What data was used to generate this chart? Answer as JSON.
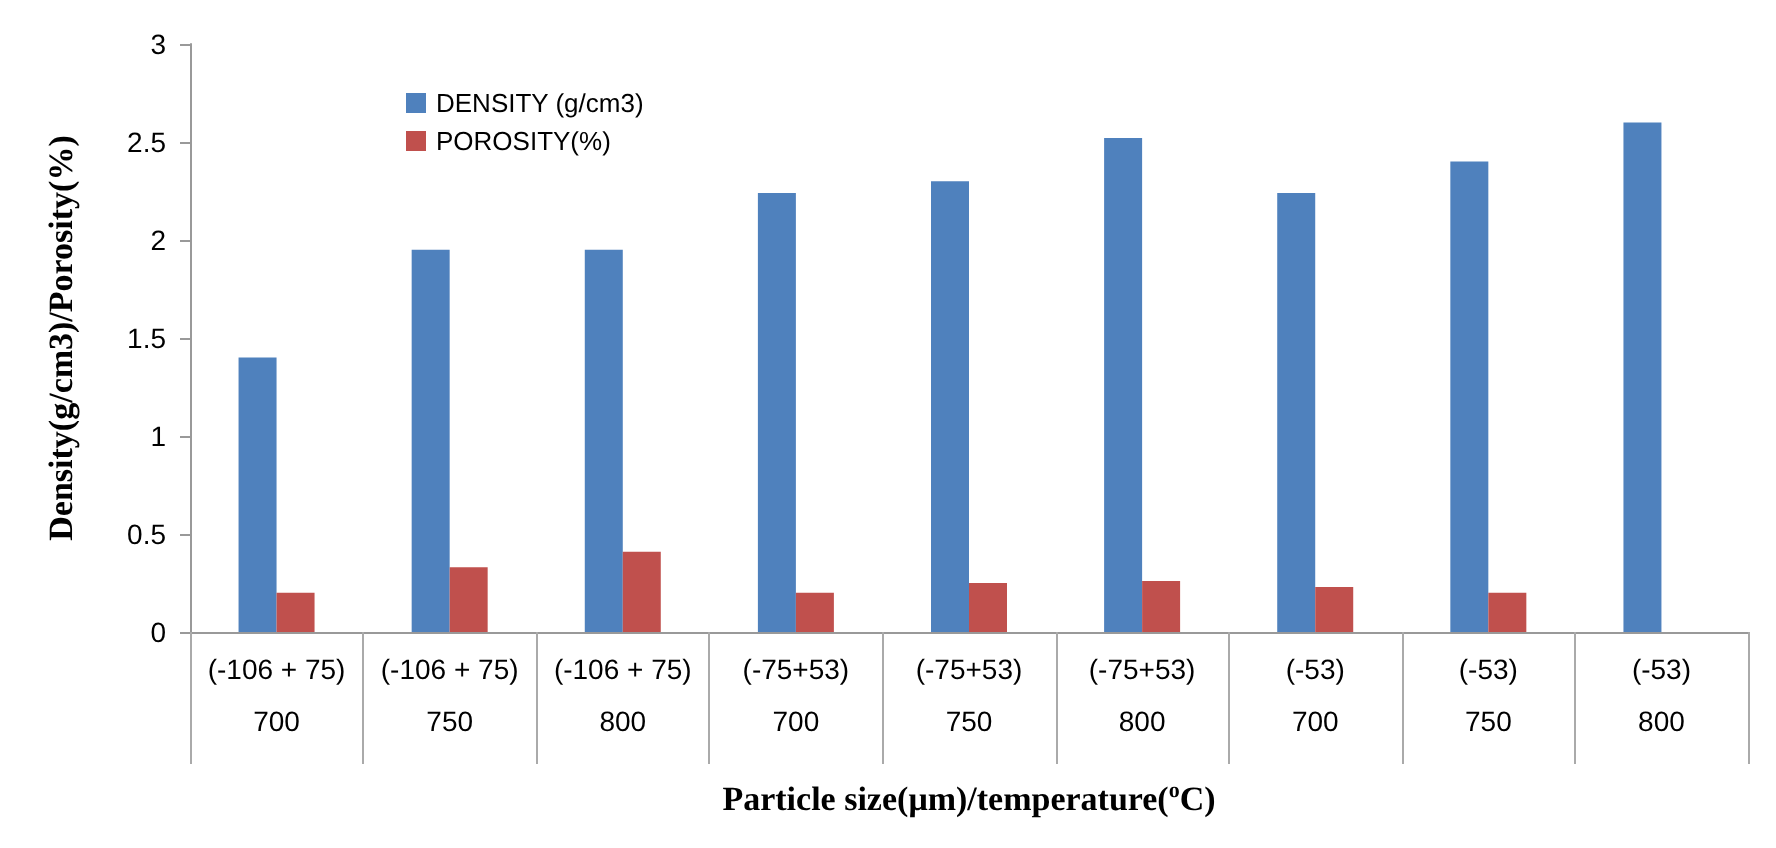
{
  "chart_data": {
    "type": "bar",
    "xlabel": "Particle size(μm)/temperature($^{o}$C)",
    "ylabel": "Density(g/cm3)/Porosity(%)",
    "categories": [
      "(-106 + 75)\n\n700",
      "(-106 + 75)\n\n750",
      "(-106 + 75)\n\n800",
      "(-75+53)\n\n700",
      "(-75+53)\n\n750",
      "(-75+53)\n\n800",
      "(-53)\n\n700",
      "(-53)\n\n750",
      "(-53)\n\n800"
    ],
    "series": [
      {
        "name": "DENSITY (g/cm3)",
        "color": "#4f81bd",
        "values": [
          1.4,
          1.95,
          1.95,
          2.24,
          2.3,
          2.52,
          2.24,
          2.4,
          2.6
        ]
      },
      {
        "name": "POROSITY(%)",
        "color": "#c0504d",
        "values": [
          0.2,
          0.33,
          0.41,
          0.2,
          0.25,
          0.26,
          0.23,
          0.2,
          null
        ]
      }
    ],
    "ylim": [
      0,
      3
    ],
    "yticks": [
      0,
      0.5,
      1,
      1.5,
      2,
      2.5,
      3
    ],
    "grid": false,
    "legend": "top"
  }
}
